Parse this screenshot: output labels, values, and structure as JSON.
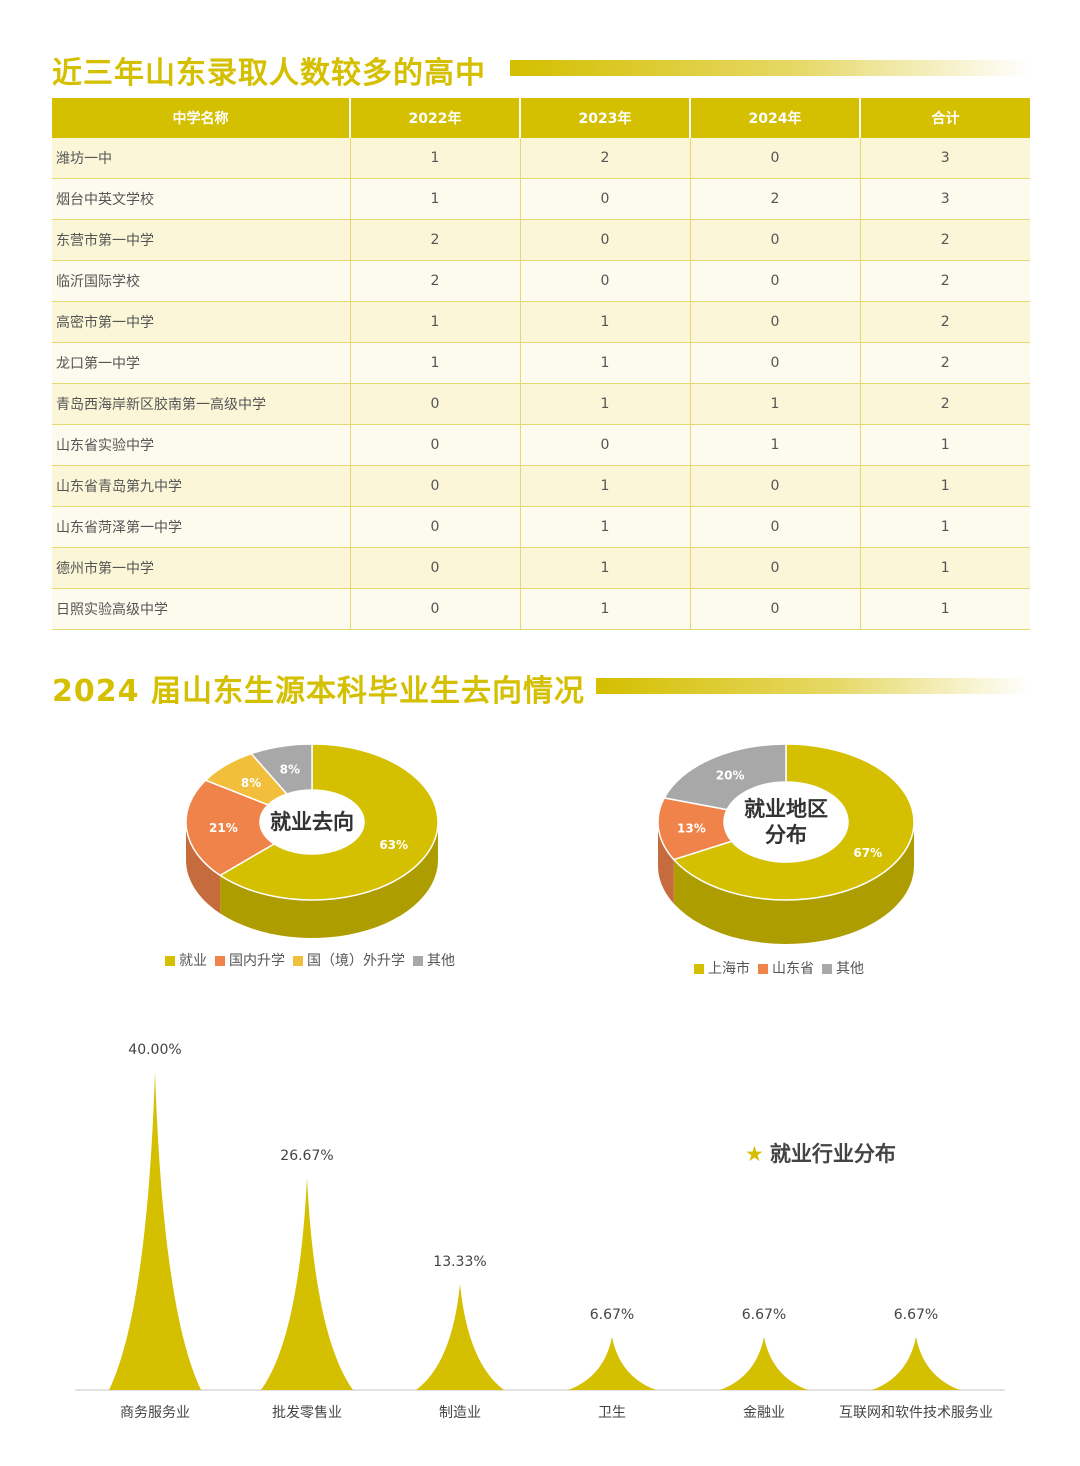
{
  "section1": {
    "title": "近三年山东录取人数较多的高中",
    "headers": [
      "中学名称",
      "2022年",
      "2023年",
      "2024年",
      "合计"
    ],
    "rows": [
      [
        "潍坊一中",
        "1",
        "2",
        "0",
        "3"
      ],
      [
        "烟台中英文学校",
        "1",
        "0",
        "2",
        "3"
      ],
      [
        "东营市第一中学",
        "2",
        "0",
        "0",
        "2"
      ],
      [
        "临沂国际学校",
        "2",
        "0",
        "0",
        "2"
      ],
      [
        "高密市第一中学",
        "1",
        "1",
        "0",
        "2"
      ],
      [
        "龙口第一中学",
        "1",
        "1",
        "0",
        "2"
      ],
      [
        "青岛西海岸新区胶南第一高级中学",
        "0",
        "1",
        "1",
        "2"
      ],
      [
        "山东省实验中学",
        "0",
        "0",
        "1",
        "1"
      ],
      [
        "山东省青岛第九中学",
        "0",
        "1",
        "0",
        "1"
      ],
      [
        "山东省菏泽第一中学",
        "0",
        "1",
        "0",
        "1"
      ],
      [
        "德州市第一中学",
        "0",
        "1",
        "0",
        "1"
      ],
      [
        "日照实验高级中学",
        "0",
        "1",
        "0",
        "1"
      ]
    ]
  },
  "section2": {
    "title": "2024 届山东生源本科毕业生去向情况"
  },
  "colors": {
    "gold": "#d4bf00",
    "gold_dark": "#b3a100",
    "orange": "#f0834a",
    "orange_dark": "#c9693a",
    "amber": "#f2bf3d",
    "gray": "#a8a8a8",
    "gray_dark": "#8a8a8a"
  },
  "chart_data": [
    {
      "type": "pie",
      "center_label": "就业去向",
      "slices": [
        {
          "name": "就业",
          "value": 63,
          "label": "63%",
          "color": "#d4bf00"
        },
        {
          "name": "国内升学",
          "value": 21,
          "label": "21%",
          "color": "#f0834a"
        },
        {
          "name": "国（境）外升学",
          "value": 8,
          "label": "8%",
          "color": "#f2bf3d"
        },
        {
          "name": "其他",
          "value": 8,
          "label": "8%",
          "color": "#a8a8a8"
        }
      ]
    },
    {
      "type": "pie",
      "center_label": "就业地区分布",
      "center_lines": [
        "就业地区",
        "分布"
      ],
      "slices": [
        {
          "name": "上海市",
          "value": 67,
          "label": "67%",
          "color": "#d4bf00"
        },
        {
          "name": "山东省",
          "value": 13,
          "label": "13%",
          "color": "#f0834a"
        },
        {
          "name": "其他",
          "value": 20,
          "label": "20%",
          "color": "#a8a8a8"
        }
      ]
    },
    {
      "type": "bar",
      "title": "就业行业分布",
      "categories": [
        "商务服务业",
        "批发零售业",
        "制造业",
        "卫生",
        "金融业",
        "互联网和软件技术服务业"
      ],
      "values": [
        40.0,
        26.67,
        13.33,
        6.67,
        6.67,
        6.67
      ],
      "labels": [
        "40.00%",
        "26.67%",
        "13.33%",
        "6.67%",
        "6.67%",
        "6.67%"
      ],
      "color": "#d4bf00"
    }
  ]
}
